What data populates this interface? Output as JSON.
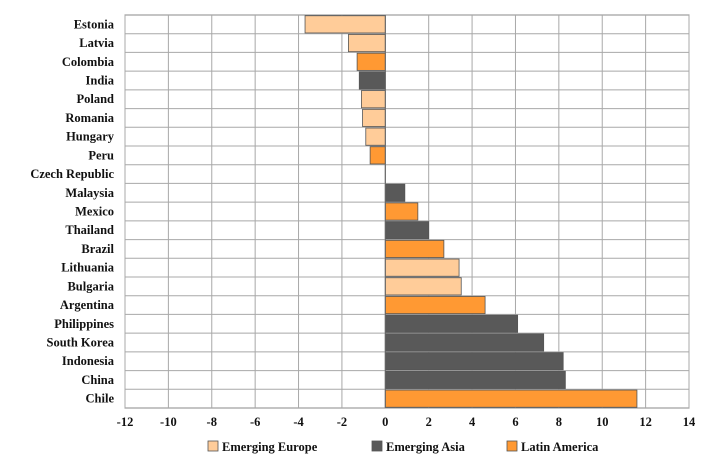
{
  "chart_data": {
    "type": "bar",
    "orientation": "horizontal",
    "categories": [
      "Estonia",
      "Latvia",
      "Colombia",
      "India",
      "Poland",
      "Romania",
      "Hungary",
      "Peru",
      "Czech Republic",
      "Malaysia",
      "Mexico",
      "Thailand",
      "Brazil",
      "Lithuania",
      "Bulgaria",
      "Argentina",
      "Philippines",
      "South Korea",
      "Indonesia",
      "China",
      "Chile"
    ],
    "values": [
      -3.7,
      -1.7,
      -1.3,
      -1.2,
      -1.1,
      -1.05,
      -0.9,
      -0.7,
      0,
      0.9,
      1.5,
      2.0,
      2.7,
      3.4,
      3.5,
      4.6,
      6.1,
      7.3,
      8.2,
      8.3,
      11.6
    ],
    "groups": [
      "Emerging Europe",
      "Emerging Europe",
      "Latin America",
      "Emerging Asia",
      "Emerging Europe",
      "Emerging Europe",
      "Emerging Europe",
      "Latin America",
      "Emerging Europe",
      "Emerging Asia",
      "Latin America",
      "Emerging Asia",
      "Latin America",
      "Emerging Europe",
      "Emerging Europe",
      "Latin America",
      "Emerging Asia",
      "Emerging Asia",
      "Emerging Asia",
      "Emerging Asia",
      "Latin America"
    ],
    "legend": [
      {
        "name": "Emerging Europe",
        "color": "#FFCC99"
      },
      {
        "name": "Emerging Asia",
        "color": "#595959"
      },
      {
        "name": "Latin America",
        "color": "#FF9933"
      }
    ],
    "legend_position": "bottom",
    "xlim": [
      -12,
      14
    ],
    "xticks": [
      "-12",
      "-10",
      "-8",
      "-6",
      "-4",
      "-2",
      "0",
      "2",
      "4",
      "6",
      "8",
      "10",
      "12",
      "14"
    ],
    "grid": true,
    "title": "",
    "xlabel": "",
    "ylabel": ""
  }
}
